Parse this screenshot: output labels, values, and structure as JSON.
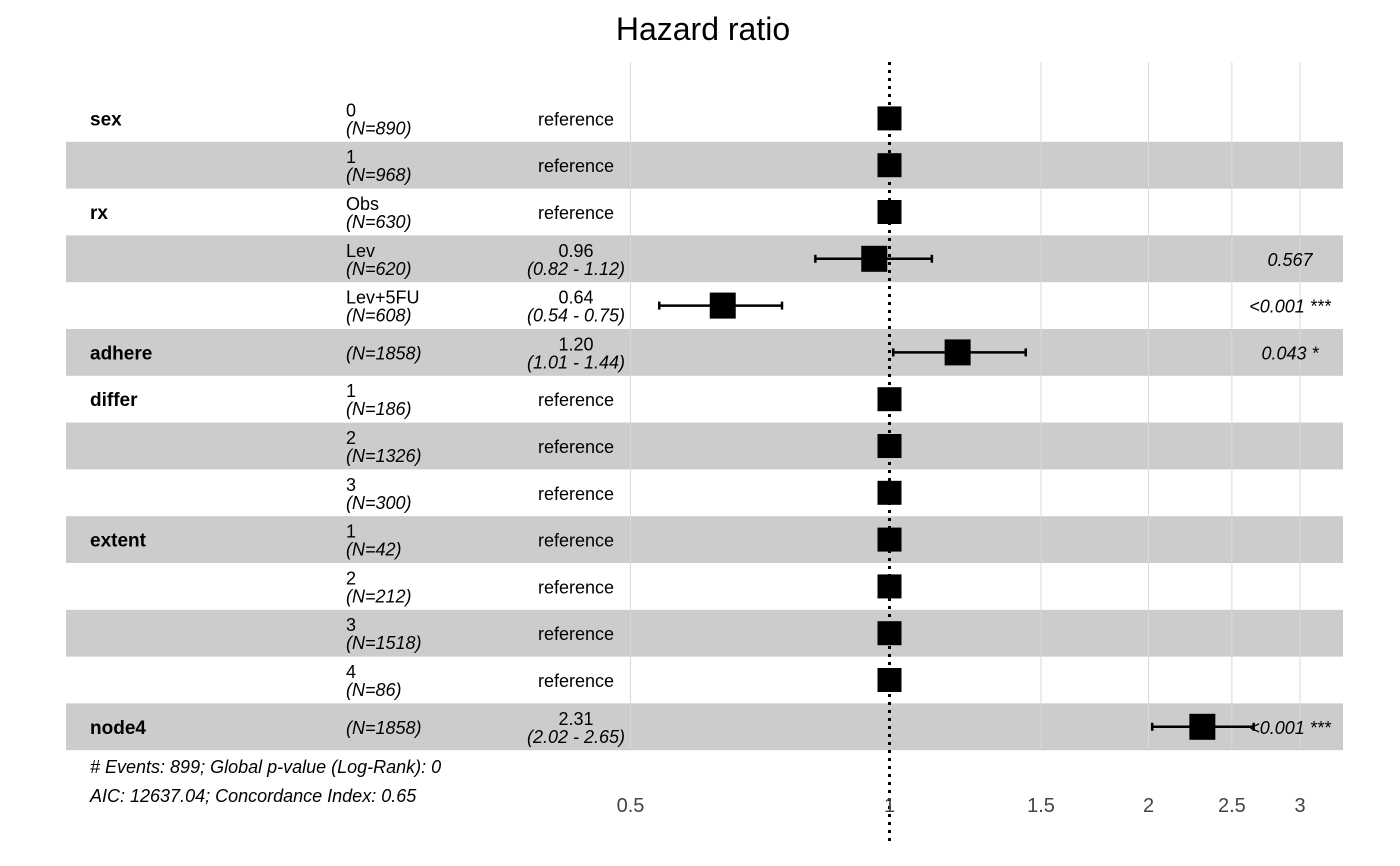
{
  "chart_data": {
    "type": "forest",
    "title": "Hazard ratio",
    "x_scale": "log",
    "xlim": [
      0.5,
      3.3
    ],
    "xticks": [
      0.5,
      1,
      1.5,
      2,
      2.5,
      3
    ],
    "xtick_labels": [
      "0.5",
      "1",
      "1.5",
      "2",
      "2.5",
      "3"
    ],
    "reference_line": 1,
    "rows": [
      {
        "variable": "sex",
        "level": "0",
        "n": "(N=890)",
        "estimate": null,
        "label": "reference",
        "ci": "",
        "p": ""
      },
      {
        "variable": "",
        "level": "1",
        "n": "(N=968)",
        "estimate": null,
        "label": "reference",
        "ci": "",
        "p": ""
      },
      {
        "variable": "rx",
        "level": "Obs",
        "n": "(N=630)",
        "estimate": null,
        "label": "reference",
        "ci": "",
        "p": ""
      },
      {
        "variable": "",
        "level": "Lev",
        "n": "(N=620)",
        "estimate": 0.96,
        "lower": 0.82,
        "upper": 1.12,
        "label": "0.96",
        "ci": "(0.82 - 1.12)",
        "p": "0.567"
      },
      {
        "variable": "",
        "level": "Lev+5FU",
        "n": "(N=608)",
        "estimate": 0.64,
        "lower": 0.54,
        "upper": 0.75,
        "label": "0.64",
        "ci": "(0.54 - 0.75)",
        "p": "<0.001 ***"
      },
      {
        "variable": "adhere",
        "level": "",
        "n": "(N=1858)",
        "estimate": 1.2,
        "lower": 1.01,
        "upper": 1.44,
        "label": "1.20",
        "ci": "(1.01 - 1.44)",
        "p": "0.043 *"
      },
      {
        "variable": "differ",
        "level": "1",
        "n": "(N=186)",
        "estimate": null,
        "label": "reference",
        "ci": "",
        "p": ""
      },
      {
        "variable": "",
        "level": "2",
        "n": "(N=1326)",
        "estimate": null,
        "label": "reference",
        "ci": "",
        "p": ""
      },
      {
        "variable": "",
        "level": "3",
        "n": "(N=300)",
        "estimate": null,
        "label": "reference",
        "ci": "",
        "p": ""
      },
      {
        "variable": "extent",
        "level": "1",
        "n": "(N=42)",
        "estimate": null,
        "label": "reference",
        "ci": "",
        "p": ""
      },
      {
        "variable": "",
        "level": "2",
        "n": "(N=212)",
        "estimate": null,
        "label": "reference",
        "ci": "",
        "p": ""
      },
      {
        "variable": "",
        "level": "3",
        "n": "(N=1518)",
        "estimate": null,
        "label": "reference",
        "ci": "",
        "p": ""
      },
      {
        "variable": "",
        "level": "4",
        "n": "(N=86)",
        "estimate": null,
        "label": "reference",
        "ci": "",
        "p": ""
      },
      {
        "variable": "node4",
        "level": "",
        "n": "(N=1858)",
        "estimate": 2.31,
        "lower": 2.02,
        "upper": 2.65,
        "label": "2.31",
        "ci": "(2.02 - 2.65)",
        "p": "<0.001 ***"
      }
    ],
    "footnotes": [
      "# Events: 899; Global p-value (Log-Rank): 0",
      "AIC: 12637.04; Concordance Index: 0.65"
    ],
    "colors": {
      "stripe": "#cccccc",
      "marker": "#000000",
      "gridline": "#d9d9d9"
    }
  }
}
